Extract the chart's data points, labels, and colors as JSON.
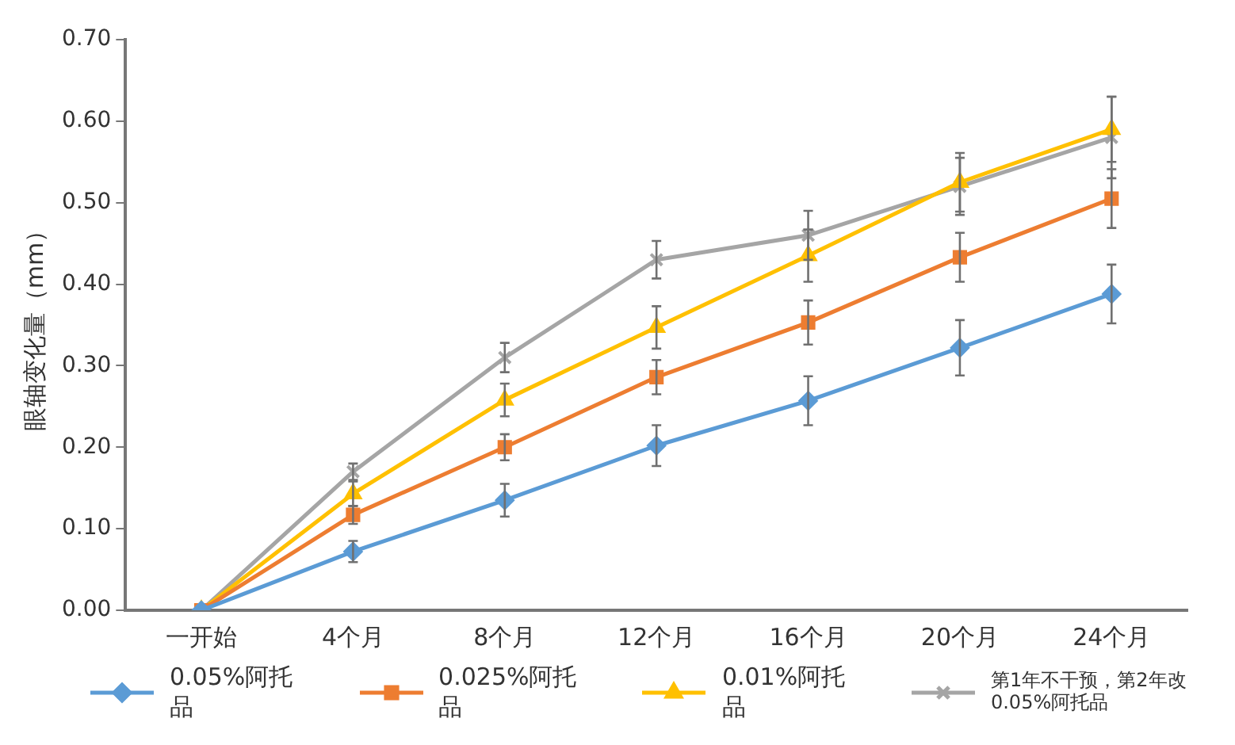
{
  "chart_data": {
    "type": "line",
    "ylabel": "眼轴变化量（mm）",
    "categories": [
      "一开始",
      "4个月",
      "8个月",
      "12个月",
      "16个月",
      "20个月",
      "24个月"
    ],
    "ylim": [
      0,
      0.7
    ],
    "yticks": [
      {
        "value": 0,
        "label": "0.00"
      },
      {
        "value": 0.1,
        "label": "0.10"
      },
      {
        "value": 0.2,
        "label": "0.20"
      },
      {
        "value": 0.3,
        "label": "0.30"
      },
      {
        "value": 0.4,
        "label": "0.40"
      },
      {
        "value": 0.5,
        "label": "0.50"
      },
      {
        "value": 0.6,
        "label": "0.60"
      },
      {
        "value": 0.7,
        "label": "0.70"
      }
    ],
    "grid": false,
    "legend": "bottom",
    "line_style": "solid",
    "series": [
      {
        "name": "0.05%阿托品",
        "color": "#5b9bd5",
        "marker": "diamond",
        "values": [
          0,
          0.072,
          0.135,
          0.202,
          0.257,
          0.322,
          0.388
        ],
        "errors": [
          null,
          0.013,
          0.02,
          0.025,
          0.03,
          0.034,
          0.036
        ]
      },
      {
        "name": "0.025%阿托品",
        "color": "#ed7d31",
        "marker": "square",
        "values": [
          0,
          0.117,
          0.2,
          0.286,
          0.353,
          0.433,
          0.505
        ],
        "errors": [
          null,
          0.011,
          0.016,
          0.021,
          0.027,
          0.03,
          0.036
        ]
      },
      {
        "name": "0.01%阿托品",
        "color": "#ffc000",
        "marker": "triangle",
        "values": [
          0,
          0.143,
          0.258,
          0.347,
          0.435,
          0.525,
          0.59
        ],
        "errors": [
          null,
          0.015,
          0.02,
          0.026,
          0.032,
          0.036,
          0.04
        ]
      },
      {
        "name": "第1年不干预，第2年改0.05%阿托品",
        "color": "#a5a5a5",
        "marker": "cross",
        "values": [
          0,
          0.17,
          0.31,
          0.43,
          0.46,
          0.52,
          0.58
        ],
        "errors": [
          null,
          0.01,
          0.018,
          0.023,
          0.03,
          0.035,
          0.05
        ]
      }
    ]
  }
}
